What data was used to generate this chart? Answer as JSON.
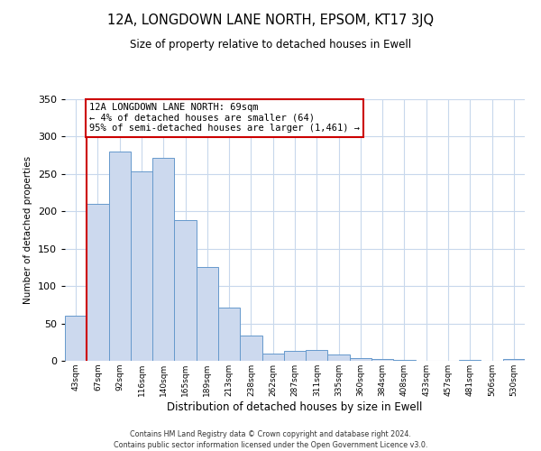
{
  "title": "12A, LONGDOWN LANE NORTH, EPSOM, KT17 3JQ",
  "subtitle": "Size of property relative to detached houses in Ewell",
  "xlabel": "Distribution of detached houses by size in Ewell",
  "ylabel": "Number of detached properties",
  "bin_labels": [
    "43sqm",
    "67sqm",
    "92sqm",
    "116sqm",
    "140sqm",
    "165sqm",
    "189sqm",
    "213sqm",
    "238sqm",
    "262sqm",
    "287sqm",
    "311sqm",
    "335sqm",
    "360sqm",
    "384sqm",
    "408sqm",
    "433sqm",
    "457sqm",
    "481sqm",
    "506sqm",
    "530sqm"
  ],
  "bar_heights": [
    60,
    210,
    280,
    253,
    272,
    188,
    126,
    71,
    34,
    10,
    13,
    15,
    8,
    4,
    2,
    1,
    0,
    0,
    1,
    0,
    2
  ],
  "bar_color": "#ccd9ee",
  "bar_edge_color": "#6699cc",
  "annotation_text": "12A LONGDOWN LANE NORTH: 69sqm\n← 4% of detached houses are smaller (64)\n95% of semi-detached houses are larger (1,461) →",
  "annotation_box_color": "#ffffff",
  "annotation_box_edge_color": "#cc0000",
  "line_color": "#cc0000",
  "ylim": [
    0,
    350
  ],
  "yticks": [
    0,
    50,
    100,
    150,
    200,
    250,
    300,
    350
  ],
  "footer_line1": "Contains HM Land Registry data © Crown copyright and database right 2024.",
  "footer_line2": "Contains public sector information licensed under the Open Government Licence v3.0.",
  "background_color": "#ffffff",
  "grid_color": "#c8d8ec"
}
